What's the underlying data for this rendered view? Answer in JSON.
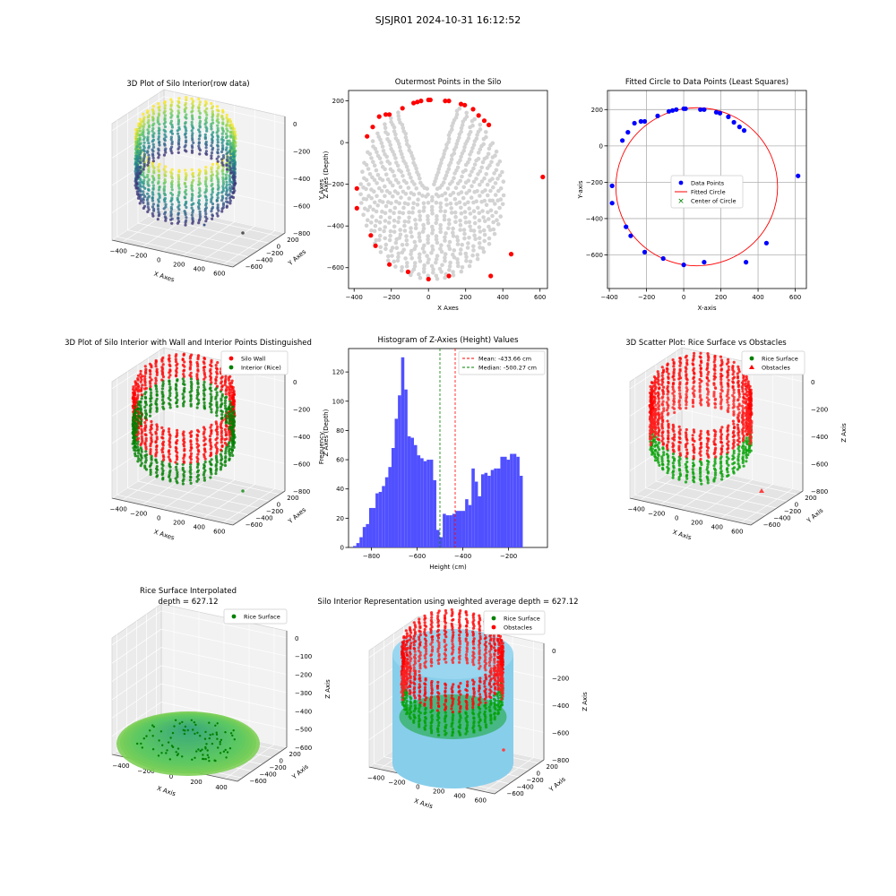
{
  "figure": {
    "suptitle": "SJSJR01 2024-10-31 16:12:52"
  },
  "chart_data": [
    {
      "type": "scatter",
      "projection": "3d",
      "title": "3D Plot of Silo Interior(row data)",
      "xlabel": "X Axes",
      "ylabel": "Y Axes",
      "zlabel": "Z Axes (Depth)",
      "xticks": [
        "−400",
        "−200",
        "0",
        "200",
        "400",
        "600"
      ],
      "yticks": [
        "−600",
        "−400",
        "−200",
        "0",
        "200"
      ],
      "zticks": [
        "0",
        "−200",
        "−400",
        "−600",
        "−800"
      ],
      "colormap": "viridis",
      "xlim": [
        -400,
        620
      ],
      "ylim": [
        -650,
        210
      ],
      "zlim": [
        -880,
        0
      ]
    },
    {
      "type": "scatter",
      "title": "Outermost Points in the Silo",
      "xlabel": "X Axes",
      "ylabel": "Y Axes",
      "xlim": [
        -430,
        640
      ],
      "ylim": [
        -700,
        250
      ],
      "xticks": [
        -400,
        -200,
        0,
        200,
        400,
        600
      ],
      "yticks": [
        -600,
        -400,
        -200,
        0,
        200
      ],
      "series": [
        {
          "color": "#d3d3d3",
          "role": "all points"
        },
        {
          "color": "#ff0000",
          "role": "outermost points",
          "x": [
            -385,
            -385,
            -330,
            -300,
            -265,
            -230,
            -210,
            -140,
            -110,
            -80,
            -60,
            -40,
            0,
            10,
            90,
            110,
            175,
            195,
            240,
            270,
            300,
            325,
            335,
            445,
            615,
            -310,
            -285,
            -210,
            0,
            110
          ],
          "y": [
            -220,
            -315,
            30,
            75,
            125,
            135,
            135,
            165,
            -620,
            190,
            195,
            200,
            205,
            205,
            200,
            200,
            185,
            180,
            160,
            130,
            105,
            85,
            -640,
            -535,
            -165,
            -445,
            -495,
            -585,
            -655,
            -640
          ]
        }
      ]
    },
    {
      "type": "scatter",
      "title": "Fitted Circle to Data Points (Least Squares)",
      "xlabel": "X-axis",
      "ylabel": "Y-axis",
      "xlim": [
        -410,
        660
      ],
      "ylim": [
        -785,
        305
      ],
      "xticks": [
        -400,
        -200,
        0,
        200,
        400,
        600
      ],
      "yticks": [
        -600,
        -400,
        -200,
        0,
        200
      ],
      "grid": true,
      "legend": {
        "position": "center",
        "entries": [
          "Data Points",
          "Fitted Circle",
          "Center of Circle"
        ]
      },
      "data_points": {
        "x": [
          -385,
          -385,
          -330,
          -300,
          -265,
          -230,
          -210,
          -140,
          -110,
          -80,
          -60,
          -40,
          0,
          10,
          90,
          110,
          175,
          195,
          240,
          270,
          300,
          325,
          335,
          445,
          615,
          -310,
          -285,
          -210,
          0,
          110
        ],
        "y": [
          -220,
          -315,
          30,
          75,
          125,
          135,
          135,
          165,
          -620,
          190,
          195,
          200,
          205,
          205,
          200,
          200,
          185,
          180,
          160,
          130,
          105,
          85,
          -640,
          -535,
          -165,
          -445,
          -495,
          -585,
          -655,
          -640
        ]
      },
      "circle": {
        "center": [
          70,
          -225
        ],
        "radius": 435
      }
    },
    {
      "type": "scatter",
      "projection": "3d",
      "title": "3D Plot of Silo Interior with Wall and Interior Points Distinguished",
      "xlabel": "X Axes",
      "ylabel": "Y Axes",
      "zlabel": "Z Axes (Depth)",
      "xticks": [
        "−400",
        "−200",
        "0",
        "200",
        "400",
        "600"
      ],
      "yticks": [
        "−600",
        "−400",
        "−200",
        "0",
        "200"
      ],
      "zticks": [
        "0",
        "−200",
        "−400",
        "−600",
        "−800"
      ],
      "legend": {
        "position": "top-right",
        "entries": [
          {
            "label": "Silo Wall",
            "color": "#ff0000"
          },
          {
            "label": "Interior (Rice)",
            "color": "#008000"
          }
        ]
      }
    },
    {
      "type": "bar",
      "subtype": "histogram",
      "title": "Histogram of Z-Axies (Height) Values",
      "xlabel": "Height (cm)",
      "ylabel": "Frequency",
      "xlim": [
        -900,
        -30
      ],
      "ylim": [
        0,
        136
      ],
      "xticks": [
        -800,
        -600,
        -400,
        -200
      ],
      "yticks": [
        0,
        20,
        40,
        60,
        80,
        100,
        120
      ],
      "bin_start": -880,
      "bin_width": 14,
      "counts": [
        1,
        3,
        7,
        14,
        16,
        27,
        27,
        37,
        38,
        42,
        48,
        55,
        68,
        88,
        104,
        130,
        108,
        76,
        75,
        70,
        63,
        61,
        59,
        60,
        60,
        46,
        12,
        7,
        23,
        22,
        22,
        23,
        25,
        25,
        25,
        33,
        29,
        54,
        45,
        35,
        50,
        51,
        49,
        53,
        54,
        54,
        62,
        62,
        60,
        64,
        64,
        62,
        49
      ],
      "bar_color": "#5050ff",
      "legend": {
        "position": "top-right",
        "entries": [
          "Mean: -433.66 cm",
          "Median: -500.27 cm"
        ]
      },
      "lines": [
        {
          "label": "Mean: -433.66 cm",
          "x": -433.66,
          "color": "#ff0000"
        },
        {
          "label": "Median: -500.27 cm",
          "x": -500.27,
          "color": "#008000"
        }
      ]
    },
    {
      "type": "scatter",
      "projection": "3d",
      "title": "3D Scatter Plot: Rice Surface vs Obstacles",
      "xlabel": "X Axis",
      "ylabel": "Y Axis",
      "zlabel": "Z Axis",
      "xticks": [
        "−400",
        "−200",
        "0",
        "200",
        "400",
        "600"
      ],
      "yticks": [
        "−600",
        "−400",
        "−200",
        "0",
        "200"
      ],
      "zticks": [
        "0",
        "−200",
        "−400",
        "−600",
        "−800"
      ],
      "legend": {
        "position": "top-right",
        "entries": [
          {
            "label": "Rice Surface",
            "color": "#008000"
          },
          {
            "label": "Obstacles",
            "color": "#ff0000"
          }
        ]
      }
    },
    {
      "type": "surface",
      "projection": "3d",
      "title": "Rice Surface Interpolated",
      "subtitle": "depth = 627.12",
      "xlabel": "X Axis",
      "ylabel": "Y Axis",
      "zlabel": "Z Axis",
      "xticks": [
        "−400",
        "−200",
        "0",
        "200",
        "400"
      ],
      "yticks": [
        "−600",
        "−400",
        "−200",
        "0",
        "200"
      ],
      "zticks": [
        "0",
        "−100",
        "−200",
        "−300",
        "−400",
        "−500",
        "−600"
      ],
      "legend": {
        "position": "top-right",
        "entries": [
          {
            "label": "Rice Surface",
            "color": "#008000"
          }
        ]
      }
    },
    {
      "type": "scatter",
      "projection": "3d",
      "title": "Silo Interior Representation using weighted average depth = 627.12",
      "xlabel": "X Axis",
      "ylabel": "Y Axis",
      "zlabel": "Z Axis",
      "xticks": [
        "−400",
        "−200",
        "0",
        "200",
        "400",
        "600"
      ],
      "yticks": [
        "−600",
        "−400",
        "−200",
        "0",
        "200"
      ],
      "zticks": [
        "0",
        "−200",
        "−400",
        "−600",
        "−800"
      ],
      "legend": {
        "position": "top-center",
        "entries": [
          {
            "label": "Rice Surface",
            "color": "#008000"
          },
          {
            "label": "Obstacles",
            "color": "#ff0000"
          }
        ]
      }
    }
  ]
}
